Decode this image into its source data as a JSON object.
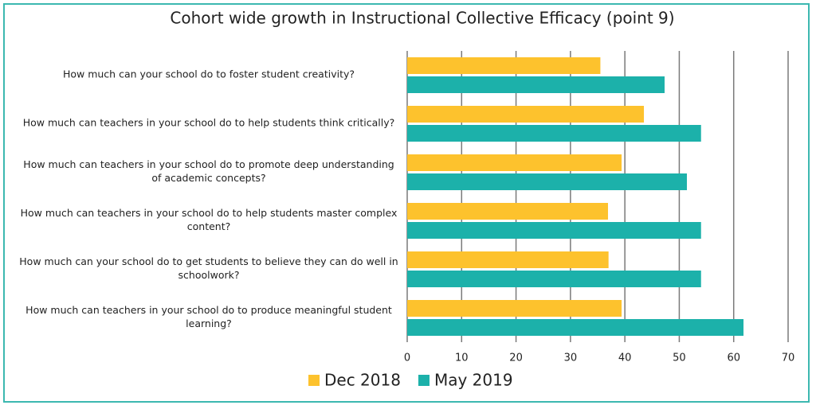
{
  "chart_data": {
    "type": "bar",
    "orientation": "horizontal",
    "title": "Cohort wide growth in Instructional Collective Efficacy (point 9)",
    "categories": [
      "How much can your school do to foster student creativity?",
      "How much can teachers in your school do to help students think critically?",
      "How much can teachers in your school do to promote deep understanding of academic concepts?",
      "How much can teachers in your school do to help students master complex content?",
      "How much can your school do to get students to believe they can do well in schoolwork?",
      "How much can teachers in your school do to produce meaningful student learning?"
    ],
    "series": [
      {
        "name": "Dec 2018",
        "color": "#fdc22d",
        "values": [
          35.5,
          43.5,
          39.4,
          36.9,
          37,
          39.4
        ]
      },
      {
        "name": "May 2019",
        "color": "#1cb1aa",
        "values": [
          47.3,
          54,
          51.4,
          54,
          54,
          61.8
        ]
      }
    ],
    "xlim": [
      0,
      70
    ],
    "xticks": [
      0,
      10,
      20,
      30,
      40,
      50,
      60,
      70
    ],
    "grid": true,
    "legend": "bottom"
  }
}
